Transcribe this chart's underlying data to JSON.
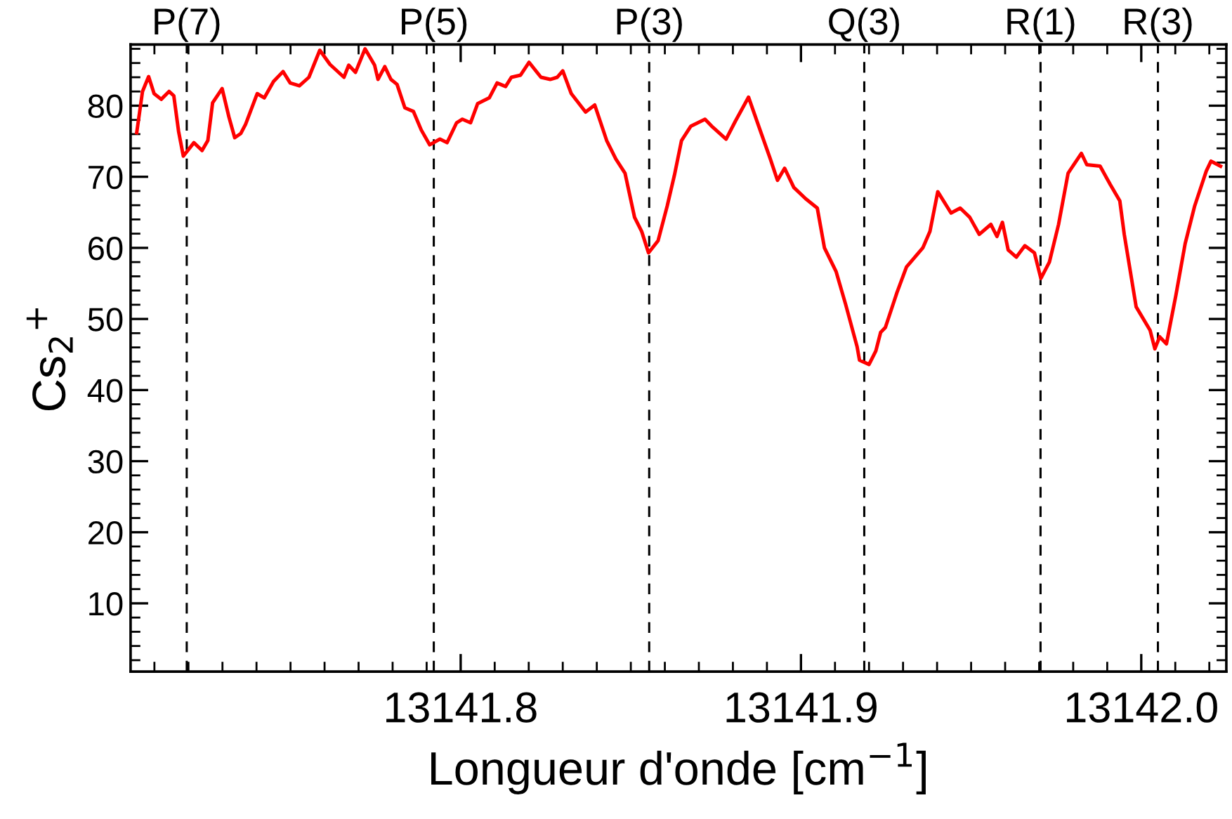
{
  "chart_data": {
    "type": "line",
    "xlabel": "Longueur d'onde [cm$^{−1}$]",
    "ylabel": "Cs$_{2}$$^{+}$",
    "xlim": [
      13141.703,
      13142.025
    ],
    "ylim": [
      0.4,
      88.6
    ],
    "xticks": [
      13141.8,
      13141.9,
      {
        "value": 13142.0,
        "label": "13142.0"
      }
    ],
    "yticks": [
      10,
      20,
      30,
      40,
      50,
      60,
      70,
      80
    ],
    "grid": false,
    "marker": "none",
    "line_style": "solid",
    "series": [
      {
        "color": "#ff0000",
        "x": [
          13141.7048,
          13141.7065,
          13141.7083,
          13141.7099,
          13141.712,
          13141.7143,
          13141.7157,
          13141.7171,
          13141.7185,
          13141.7216,
          13141.724,
          13141.7257,
          13141.7271,
          13141.7299,
          13141.7319,
          13141.7336,
          13141.7354,
          13141.7368,
          13141.7402,
          13141.7423,
          13141.745,
          13141.7478,
          13141.7499,
          13141.7526,
          13141.7554,
          13141.7586,
          13141.7616,
          13141.7657,
          13141.7671,
          13141.7691,
          13141.7719,
          13141.7747,
          13141.7757,
          13141.7777,
          13141.7795,
          13141.7813,
          13141.7836,
          13141.7861,
          13141.7884,
          13141.7909,
          13141.7939,
          13141.796,
          13141.7988,
          13141.8005,
          13141.8029,
          13141.805,
          13141.8084,
          13141.8107,
          13141.8132,
          13141.8149,
          13141.8176,
          13141.8201,
          13141.8236,
          13141.8263,
          13141.8284,
          13141.83,
          13141.8325,
          13141.8367,
          13141.8394,
          13141.8429,
          13141.8456,
          13141.8483,
          13141.8511,
          13141.8532,
          13141.8552,
          13141.858,
          13141.8607,
          13141.8628,
          13141.8649,
          13141.8676,
          13141.8718,
          13141.8738,
          13141.878,
          13141.8807,
          13141.8846,
          13141.8876,
          13141.891,
          13141.8931,
          13141.8952,
          13141.8979,
          13141.9014,
          13141.9048,
          13141.9069,
          13141.9103,
          13141.9131,
          13141.9165,
          13141.9172,
          13141.92,
          13141.922,
          13141.9234,
          13141.9248,
          13141.9282,
          13141.931,
          13141.9358,
          13141.9379,
          13141.9402,
          13141.9441,
          13141.9468,
          13141.9496,
          13141.9524,
          13141.9558,
          13141.9576,
          13141.9592,
          13141.9609,
          13141.9633,
          13141.9658,
          13141.9686,
          13141.9705,
          13141.973,
          13141.9757,
          13141.9785,
          13141.9824,
          13141.984,
          13141.9879,
          13141.9909,
          13141.9937,
          13141.995,
          13141.9985,
          13142.0026,
          13142.004,
          13142.0054,
          13142.0074,
          13142.0102,
          13142.0129,
          13142.0157,
          13142.0191,
          13142.0205,
          13142.0233
        ],
        "values": [
          76.2,
          82.0,
          84.1,
          81.7,
          80.9,
          82.0,
          81.4,
          76.4,
          72.9,
          74.8,
          73.7,
          75.1,
          80.4,
          82.4,
          78.4,
          75.5,
          76.1,
          77.4,
          81.7,
          81.1,
          83.4,
          84.8,
          83.2,
          82.8,
          84.0,
          87.8,
          85.8,
          84.0,
          85.7,
          84.7,
          88.0,
          85.7,
          83.7,
          85.5,
          83.7,
          83.0,
          79.7,
          79.2,
          76.6,
          74.5,
          75.3,
          74.8,
          77.6,
          78.1,
          77.6,
          80.3,
          81.1,
          83.2,
          82.7,
          84.0,
          84.3,
          86.1,
          84.0,
          83.7,
          84.0,
          84.9,
          81.7,
          79.1,
          80.1,
          75.1,
          72.5,
          70.5,
          64.3,
          62.3,
          59.3,
          61.0,
          65.9,
          70.2,
          75.1,
          77.1,
          78.1,
          77.1,
          75.3,
          77.8,
          81.2,
          77.1,
          72.5,
          69.5,
          71.2,
          68.5,
          66.9,
          65.6,
          60.0,
          56.7,
          52.1,
          46.1,
          44.2,
          43.6,
          45.5,
          48.1,
          48.8,
          53.7,
          57.3,
          60.0,
          62.3,
          67.9,
          64.9,
          65.6,
          64.3,
          61.9,
          63.3,
          61.6,
          63.6,
          59.7,
          58.7,
          60.3,
          59.3,
          55.7,
          58.0,
          63.3,
          70.5,
          73.3,
          71.7,
          71.5,
          68.9,
          66.6,
          61.9,
          51.7,
          48.4,
          45.8,
          47.5,
          46.5,
          53.4,
          60.6,
          65.9,
          70.8,
          72.2,
          71.5
        ]
      }
    ],
    "ref_lines": [
      {
        "axis": "x",
        "value": 13141.7195,
        "label": "P(7)",
        "color": "#000000",
        "line_style": "dashed"
      },
      {
        "axis": "x",
        "value": 13141.7921,
        "label": "P(5)",
        "color": "#000000",
        "line_style": "dashed"
      },
      {
        "axis": "x",
        "value": 13141.8554,
        "label": "P(3)",
        "color": "#000000",
        "line_style": "dashed"
      },
      {
        "axis": "x",
        "value": 13141.9186,
        "label": "Q(3)",
        "color": "#000000",
        "line_style": "dashed"
      },
      {
        "axis": "x",
        "value": 13141.9704,
        "label": "R(1)",
        "color": "#000000",
        "line_style": "dashed"
      },
      {
        "axis": "x",
        "value": 13142.0049,
        "label": "R(3)",
        "color": "#000000",
        "line_style": "dashed"
      }
    ]
  }
}
